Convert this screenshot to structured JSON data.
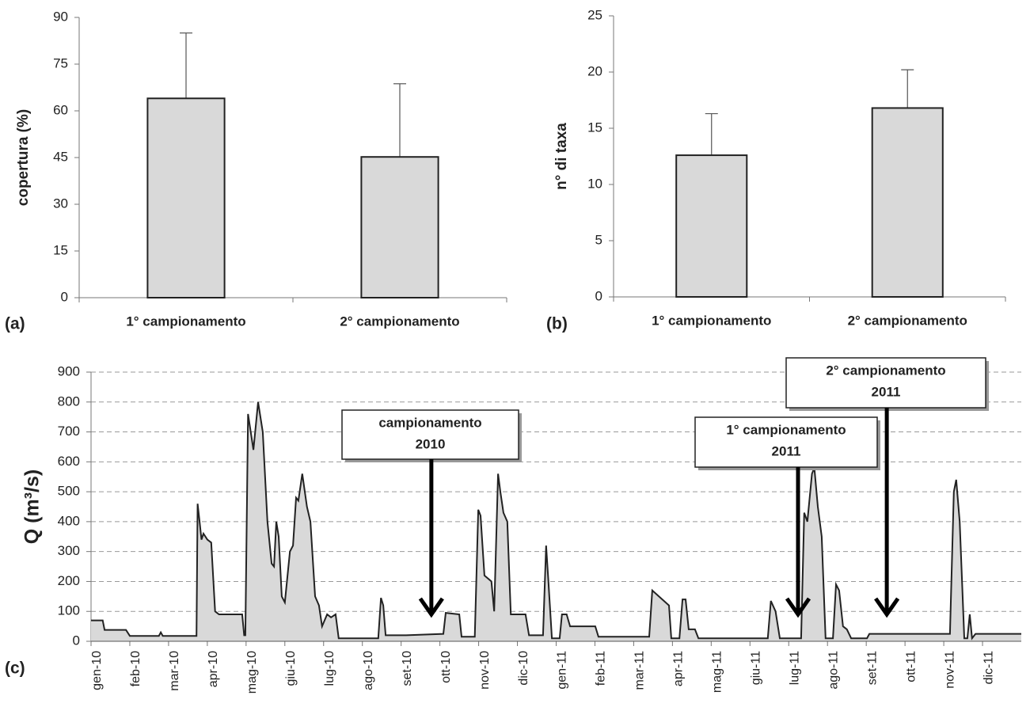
{
  "chart_data": [
    {
      "type": "bar",
      "panel_label": "(a)",
      "y_label": "copertura (%)",
      "categories": [
        "1° campionamento",
        "2° campionamento"
      ],
      "values": [
        64,
        45.2
      ],
      "errors": [
        21,
        23.5
      ],
      "color": "#d9d9d9",
      "ylim": [
        0,
        90
      ],
      "yticks": [
        0,
        15,
        30,
        45,
        60,
        75,
        90
      ]
    },
    {
      "type": "bar",
      "panel_label": "(b)",
      "y_label": "n° di taxa",
      "categories": [
        "1° campionamento",
        "2° campionamento"
      ],
      "values": [
        12.6,
        16.8
      ],
      "errors": [
        3.7,
        3.4
      ],
      "color": "#d9d9d9",
      "ylim": [
        0,
        25
      ],
      "yticks": [
        0,
        5,
        10,
        15,
        20,
        25
      ]
    },
    {
      "type": "area",
      "panel_label": "(c)",
      "y_label": "Q (m³/s)",
      "color": "#d9d9d9",
      "grid": true,
      "x": [
        0,
        0.3,
        0.35,
        0.9,
        1.0,
        1.75,
        1.8,
        1.85,
        2.72,
        2.75,
        2.8,
        2.85,
        2.9,
        3.0,
        3.1,
        3.2,
        3.3,
        3.9,
        3.95,
        3.98,
        4.05,
        4.19,
        4.31,
        4.43,
        4.55,
        4.66,
        4.72,
        4.78,
        4.84,
        4.92,
        5.0,
        5.13,
        5.21,
        5.29,
        5.35,
        5.45,
        5.57,
        5.66,
        5.78,
        5.88,
        5.96,
        6.09,
        6.19,
        6.31,
        6.39,
        7.41,
        7.48,
        7.54,
        7.6,
        8.13,
        9.09,
        9.15,
        9.5,
        9.56,
        9.9,
        9.99,
        10.05,
        10.15,
        10.33,
        10.4,
        10.5,
        10.56,
        10.64,
        10.74,
        10.83,
        11.21,
        11.3,
        11.66,
        11.74,
        11.8,
        11.89,
        12.09,
        12.15,
        12.27,
        12.36,
        13.01,
        13.09,
        14.4,
        14.48,
        14.65,
        14.91,
        14.97,
        15.18,
        15.26,
        15.34,
        15.42,
        15.58,
        15.67,
        17.46,
        17.54,
        17.66,
        17.77,
        18.32,
        18.4,
        18.48,
        18.6,
        18.66,
        18.75,
        18.85,
        18.95,
        19.14,
        19.22,
        19.3,
        19.4,
        19.5,
        19.61,
        20.02,
        20.08,
        22.16,
        22.26,
        22.32,
        22.41,
        22.53,
        22.61,
        22.67,
        22.73,
        22.82,
        24
      ],
      "values": [
        70,
        70,
        38,
        38,
        18,
        18,
        30,
        18,
        18,
        460,
        400,
        340,
        360,
        340,
        330,
        100,
        90,
        90,
        20,
        20,
        760,
        640,
        800,
        700,
        400,
        260,
        250,
        400,
        350,
        150,
        130,
        300,
        320,
        480,
        470,
        560,
        450,
        400,
        150,
        120,
        50,
        90,
        80,
        90,
        10,
        10,
        145,
        120,
        20,
        20,
        25,
        95,
        90,
        15,
        15,
        440,
        420,
        220,
        200,
        100,
        560,
        500,
        430,
        400,
        90,
        90,
        20,
        20,
        320,
        200,
        10,
        10,
        90,
        90,
        50,
        50,
        15,
        15,
        170,
        150,
        120,
        10,
        10,
        140,
        140,
        40,
        40,
        10,
        10,
        135,
        100,
        10,
        10,
        430,
        400,
        560,
        580,
        450,
        350,
        10,
        10,
        190,
        170,
        50,
        40,
        10,
        10,
        25,
        25,
        500,
        540,
        400,
        10,
        10,
        90,
        10,
        25,
        25
      ],
      "xlim": [
        0,
        24
      ],
      "xticks": [
        {
          "value": 0,
          "label": "gen-10"
        },
        {
          "value": 1,
          "label": "feb-10"
        },
        {
          "value": 2,
          "label": "mar-10"
        },
        {
          "value": 3,
          "label": "apr-10"
        },
        {
          "value": 4,
          "label": "mag-10"
        },
        {
          "value": 5,
          "label": "giu-10"
        },
        {
          "value": 6,
          "label": "lug-10"
        },
        {
          "value": 7,
          "label": "ago-10"
        },
        {
          "value": 8,
          "label": "set-10"
        },
        {
          "value": 9,
          "label": "ott-10"
        },
        {
          "value": 10,
          "label": "nov-10"
        },
        {
          "value": 11,
          "label": "dic-10"
        },
        {
          "value": 12,
          "label": "gen-11"
        },
        {
          "value": 13,
          "label": "feb-11"
        },
        {
          "value": 14,
          "label": "mar-11"
        },
        {
          "value": 15,
          "label": "apr-11"
        },
        {
          "value": 16,
          "label": "mag-11"
        },
        {
          "value": 17,
          "label": "giu-11"
        },
        {
          "value": 18,
          "label": "lug-11"
        },
        {
          "value": 19,
          "label": "ago-11"
        },
        {
          "value": 20,
          "label": "set-11"
        },
        {
          "value": 21,
          "label": "ott-11"
        },
        {
          "value": 22,
          "label": "nov-11"
        },
        {
          "value": 23,
          "label": "dic-11"
        }
      ],
      "ylim": [
        0,
        900
      ],
      "yticks": [
        0,
        100,
        200,
        300,
        400,
        500,
        600,
        700,
        800,
        900
      ],
      "annotations": [
        {
          "lines": [
            "campionamento",
            "2010"
          ],
          "x": 8.78,
          "y": 90
        },
        {
          "lines": [
            "1° campionamento",
            "2011"
          ],
          "x": 18.24,
          "y": 90
        },
        {
          "lines": [
            "2° campionamento",
            "2011"
          ],
          "x": 20.53,
          "y": 90
        }
      ]
    }
  ]
}
